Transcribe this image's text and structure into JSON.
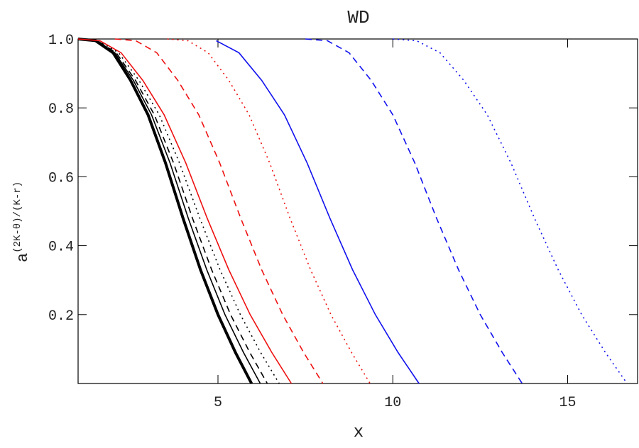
{
  "chart_data": {
    "type": "line",
    "title": "WD",
    "x_label": "x",
    "y_label": "a",
    "y_label_sup": "(2K-θ)/(K-r)",
    "xlim": [
      1,
      17
    ],
    "ylim": [
      0,
      1
    ],
    "xticks": [
      5,
      10,
      15
    ],
    "yticks": [
      0.2,
      0.4,
      0.6,
      0.8,
      {
        "value": 1,
        "label": "1.0"
      }
    ],
    "series": [
      {
        "color": "#000000",
        "width": 4,
        "dash": "solid",
        "x": [
          1,
          1.5,
          2,
          2.5,
          3,
          3.5,
          4,
          4.5,
          5,
          5.5,
          5.96
        ],
        "values": [
          1,
          0.995,
          0.96,
          0.88,
          0.78,
          0.64,
          0.48,
          0.33,
          0.2,
          0.09,
          0
        ]
      },
      {
        "color": "#000000",
        "width": 1.6,
        "dash": "solid",
        "x": [
          1,
          1.53,
          2.05,
          2.58,
          3.1,
          3.63,
          4.15,
          4.68,
          5.2,
          5.73,
          6.21
        ],
        "values": [
          1,
          0.995,
          0.96,
          0.88,
          0.78,
          0.64,
          0.48,
          0.33,
          0.2,
          0.09,
          0
        ]
      },
      {
        "color": "#000000",
        "width": 1.6,
        "dash": "dashed",
        "x": [
          1,
          1.55,
          2.09,
          2.64,
          3.18,
          3.73,
          4.27,
          4.82,
          5.36,
          5.91,
          6.41
        ],
        "values": [
          1,
          0.995,
          0.96,
          0.88,
          0.78,
          0.64,
          0.48,
          0.33,
          0.2,
          0.09,
          0
        ]
      },
      {
        "color": "#000000",
        "width": 1.6,
        "dash": "dotted",
        "x": [
          1,
          1.58,
          2.16,
          2.74,
          3.32,
          3.9,
          4.48,
          5.06,
          5.64,
          6.22,
          6.75
        ],
        "values": [
          1,
          0.995,
          0.96,
          0.88,
          0.78,
          0.64,
          0.48,
          0.33,
          0.2,
          0.09,
          0
        ]
      },
      {
        "color": "#ee1111",
        "width": 1.6,
        "dash": "solid",
        "x": [
          1,
          1.62,
          2.23,
          2.85,
          3.46,
          4.08,
          4.69,
          5.31,
          5.92,
          6.54,
          7.1
        ],
        "values": [
          1,
          0.995,
          0.96,
          0.88,
          0.78,
          0.64,
          0.48,
          0.33,
          0.2,
          0.09,
          0
        ]
      },
      {
        "color": "#ee1111",
        "width": 1.6,
        "dash": "dashed",
        "x": [
          2.05,
          2.65,
          3.25,
          3.85,
          4.45,
          5.05,
          5.65,
          6.25,
          6.85,
          7.45,
          8.0
        ],
        "values": [
          1,
          0.995,
          0.96,
          0.88,
          0.78,
          0.64,
          0.48,
          0.33,
          0.2,
          0.09,
          0
        ]
      },
      {
        "color": "#ee1111",
        "width": 1.6,
        "dash": "dotted",
        "x": [
          3.55,
          4.14,
          4.72,
          5.31,
          5.89,
          6.48,
          7.06,
          7.65,
          8.23,
          8.82,
          9.35
        ],
        "values": [
          1,
          0.995,
          0.96,
          0.88,
          0.78,
          0.64,
          0.48,
          0.33,
          0.2,
          0.09,
          0
        ]
      },
      {
        "color": "#1111ee",
        "width": 1.6,
        "dash": "solid",
        "x": [
          4.95,
          5.6,
          6.25,
          6.9,
          7.55,
          8.2,
          8.85,
          9.5,
          10.15,
          10.75
        ],
        "values": [
          0.995,
          0.96,
          0.88,
          0.78,
          0.64,
          0.48,
          0.33,
          0.2,
          0.09,
          0
        ]
      },
      {
        "color": "#1111ee",
        "width": 1.6,
        "dash": "dashed",
        "x": [
          7.5,
          8.13,
          8.75,
          9.38,
          10,
          10.63,
          11.25,
          11.88,
          12.5,
          13.13,
          13.7
        ],
        "values": [
          1,
          0.995,
          0.96,
          0.88,
          0.78,
          0.64,
          0.48,
          0.33,
          0.2,
          0.09,
          0
        ]
      },
      {
        "color": "#1111ee",
        "width": 1.6,
        "dash": "dotted",
        "x": [
          10,
          10.68,
          11.35,
          12.03,
          12.7,
          13.38,
          14.05,
          14.73,
          15.4,
          16.08,
          16.7
        ],
        "values": [
          1,
          0.995,
          0.96,
          0.88,
          0.78,
          0.64,
          0.48,
          0.33,
          0.2,
          0.09,
          0
        ]
      }
    ]
  }
}
